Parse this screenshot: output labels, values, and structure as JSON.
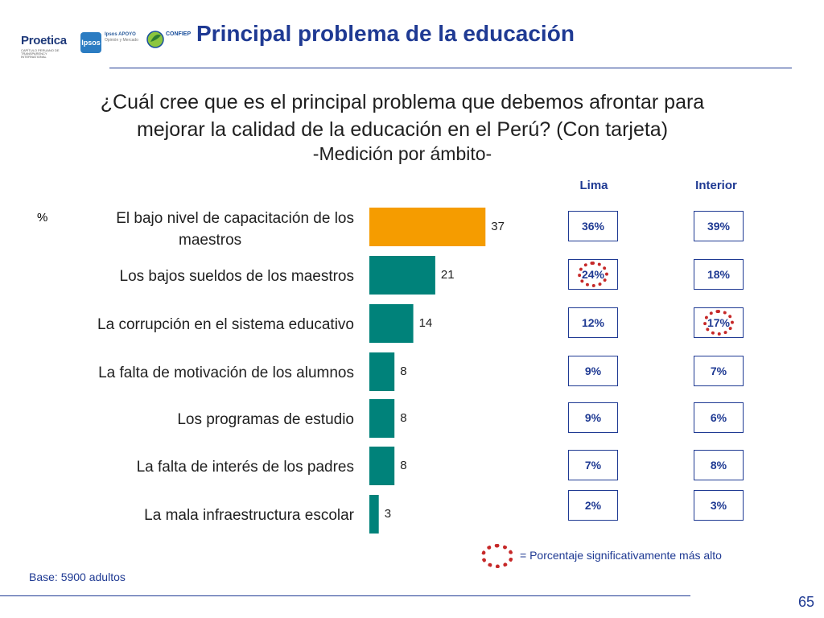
{
  "logos": {
    "proetica": "Proetica",
    "proetica_sub": "CAPÍTULO PERUANO DE TRANSPARENCY INTERNATIONAL",
    "ipsos": "Ipsos",
    "ipsos_apoyo": "Ipsos APOYO",
    "ipsos_apoyo_sub": "Opinión y Mercado",
    "confiep": "CONFIEP"
  },
  "header": {
    "title": "Principal problema de la educación"
  },
  "question": {
    "line1": "¿Cuál cree que es el principal problema que debemos afrontar para",
    "line2": "mejorar la calidad de la educación en el Perú? (Con tarjeta)",
    "subtitle": "-Medición por ámbito-"
  },
  "columns": {
    "lima": "Lima",
    "interior": "Interior"
  },
  "percent_sign": "%",
  "colors": {
    "highlight_bar": "#f59c00",
    "bar": "#00827a",
    "accent": "#1f3a93",
    "significance": "#c62828"
  },
  "chart_data": {
    "type": "bar",
    "orientation": "horizontal",
    "unit": "%",
    "categories": [
      "El bajo nivel de capacitación de los maestros",
      "Los bajos sueldos de los maestros",
      "La corrupción en el sistema educativo",
      "La falta de motivación de los alumnos",
      "Los programas de estudio",
      "La falta de interés de los padres",
      "La mala infraestructura escolar"
    ],
    "category_lines": [
      [
        "El bajo nivel de capacitación de los",
        "maestros"
      ],
      [
        "Los bajos sueldos de los maestros"
      ],
      [
        "La corrupción en el sistema educativo"
      ],
      [
        "La falta de motivación de los alumnos"
      ],
      [
        "Los programas de estudio"
      ],
      [
        "La falta de interés de los padres"
      ],
      [
        "La mala infraestructura escolar"
      ]
    ],
    "values": [
      37,
      21,
      14,
      8,
      8,
      8,
      3
    ],
    "highlight_index": 0,
    "lima": [
      "36%",
      "24%",
      "12%",
      "9%",
      "9%",
      "7%",
      "2%"
    ],
    "interior": [
      "39%",
      "18%",
      "17%",
      "7%",
      "6%",
      "8%",
      "3%"
    ],
    "significant": [
      {
        "column": "lima",
        "index": 1
      },
      {
        "column": "interior",
        "index": 2
      }
    ]
  },
  "legend": {
    "text": "= Porcentaje significativamente más alto"
  },
  "footer": {
    "base": "Base: 5900 adultos",
    "page_number": "65"
  }
}
